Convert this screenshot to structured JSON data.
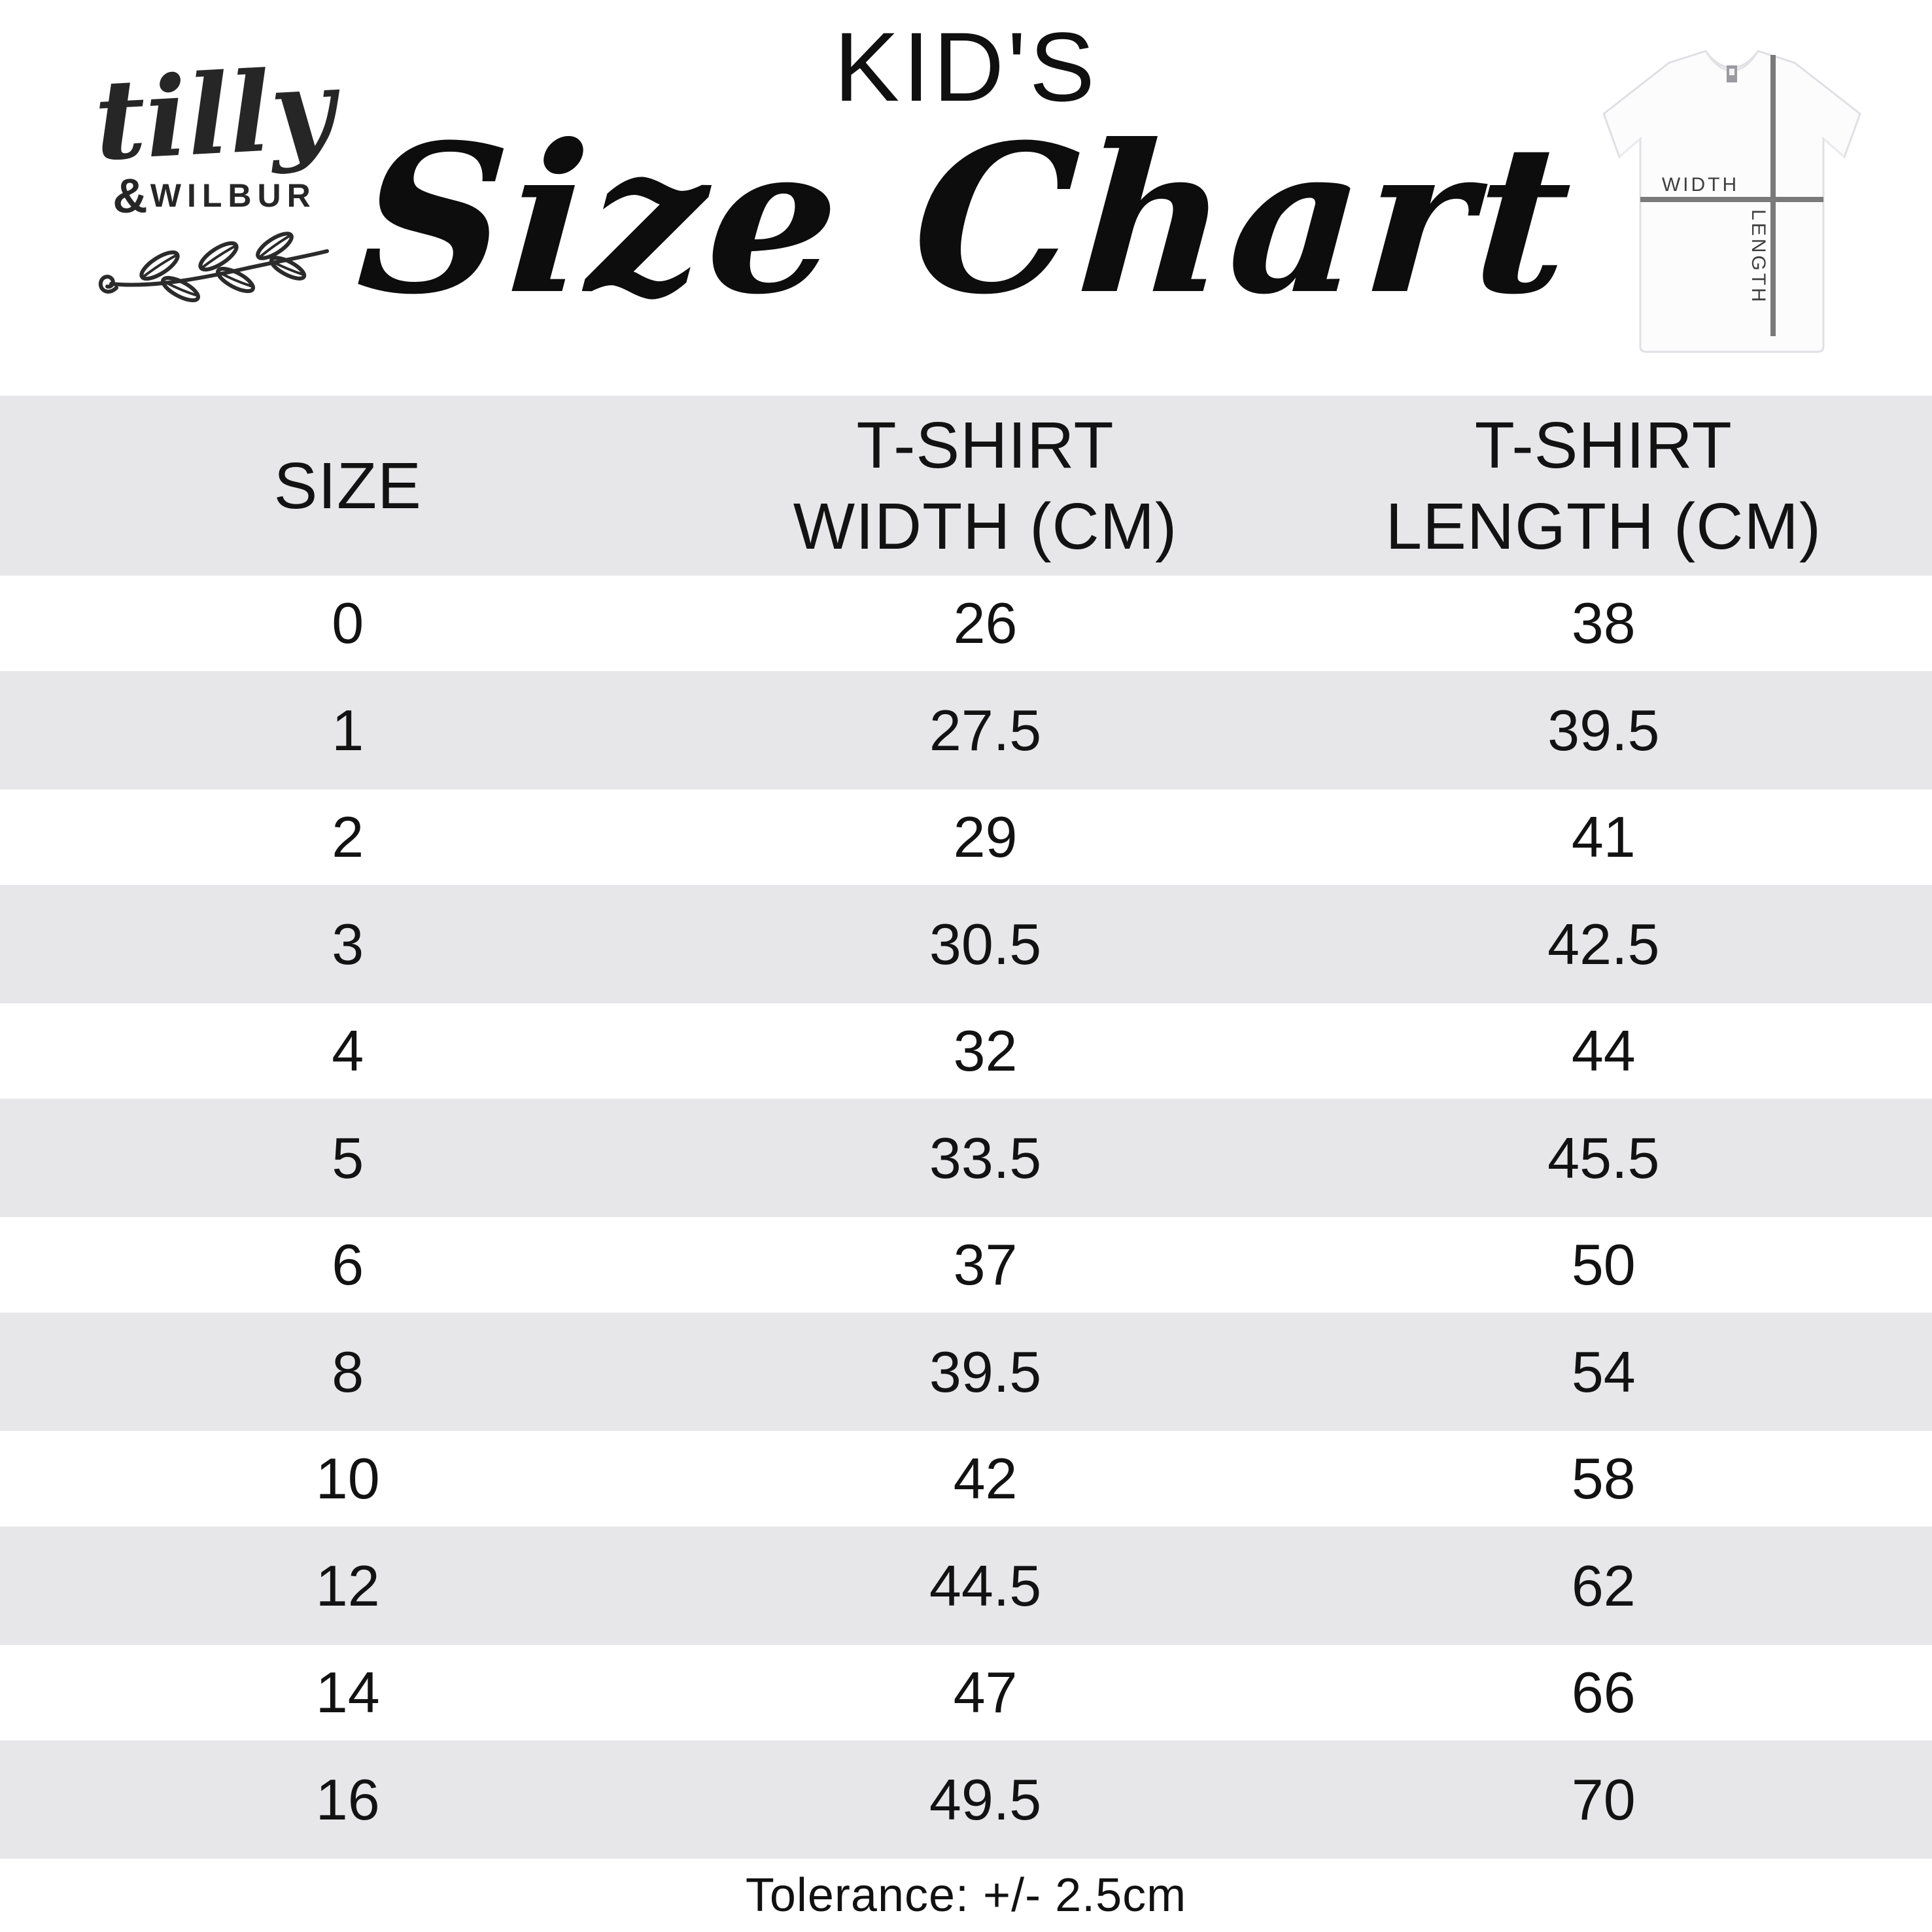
{
  "brand": {
    "script": "tilly",
    "amp": "&",
    "caps": "WILBUR"
  },
  "title": {
    "kicker": "KID'S",
    "main": "Size Chart"
  },
  "shirt": {
    "width_label": "WIDTH",
    "length_label": "LENGTH"
  },
  "table": {
    "columns": [
      "SIZE",
      "T-SHIRT\nWIDTH (CM)",
      "T-SHIRT\nLENGTH (CM)"
    ],
    "rows": [
      {
        "size": "0",
        "width": "26",
        "length": "38"
      },
      {
        "size": "1",
        "width": "27.5",
        "length": "39.5"
      },
      {
        "size": "2",
        "width": "29",
        "length": "41"
      },
      {
        "size": "3",
        "width": "30.5",
        "length": "42.5"
      },
      {
        "size": "4",
        "width": "32",
        "length": "44"
      },
      {
        "size": "5",
        "width": "33.5",
        "length": "45.5"
      },
      {
        "size": "6",
        "width": "37",
        "length": "50"
      },
      {
        "size": "8",
        "width": "39.5",
        "length": "54"
      },
      {
        "size": "10",
        "width": "42",
        "length": "58"
      },
      {
        "size": "12",
        "width": "44.5",
        "length": "62"
      },
      {
        "size": "14",
        "width": "47",
        "length": "66"
      },
      {
        "size": "16",
        "width": "49.5",
        "length": "70"
      }
    ]
  },
  "footer": {
    "tolerance": "Tolerance: +/- 2.5cm"
  },
  "colors": {
    "band": "#e7e7e9",
    "text": "#121212",
    "shirt_line": "#7a7a7a",
    "shirt_label": "#3f3f3f"
  },
  "chart_data": {
    "type": "table",
    "title": "KID'S Size Chart",
    "columns": [
      "SIZE",
      "T-SHIRT WIDTH (CM)",
      "T-SHIRT LENGTH (CM)"
    ],
    "rows": [
      [
        0,
        26,
        38
      ],
      [
        1,
        27.5,
        39.5
      ],
      [
        2,
        29,
        41
      ],
      [
        3,
        30.5,
        42.5
      ],
      [
        4,
        32,
        44
      ],
      [
        5,
        33.5,
        45.5
      ],
      [
        6,
        37,
        50
      ],
      [
        8,
        39.5,
        54
      ],
      [
        10,
        42,
        58
      ],
      [
        12,
        44.5,
        62
      ],
      [
        14,
        47,
        66
      ],
      [
        16,
        49.5,
        70
      ]
    ],
    "note": "Tolerance: +/- 2.5cm"
  }
}
